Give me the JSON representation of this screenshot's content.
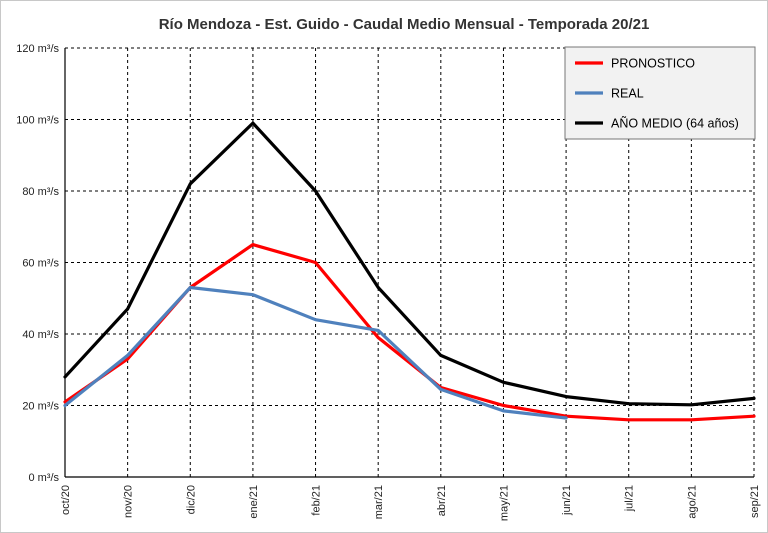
{
  "chart_data": {
    "type": "line",
    "title": "Río Mendoza - Est. Guido - Caudal Medio Mensual - Temporada 20/21",
    "xlabel": "",
    "ylabel": "",
    "categories": [
      "oct/20",
      "nov/20",
      "dic/20",
      "ene/21",
      "feb/21",
      "mar/21",
      "abr/21",
      "may/21",
      "jun/21",
      "jul/21",
      "ago/21",
      "sep/21"
    ],
    "y_tick_labels": [
      "0 m³/s",
      "20 m³/s",
      "40 m³/s",
      "60 m³/s",
      "80 m³/s",
      "100 m³/s",
      "120 m³/s"
    ],
    "y_ticks": [
      0,
      20,
      40,
      60,
      80,
      100,
      120
    ],
    "ylim": [
      0,
      120
    ],
    "grid": true,
    "legend_position": "top-right",
    "series": [
      {
        "name": "PRONOSTICO",
        "color": "#ff0000",
        "values": [
          21,
          33,
          53,
          65,
          60,
          39,
          25,
          20,
          17,
          16,
          16,
          17
        ]
      },
      {
        "name": "REAL",
        "color": "#4f81bd",
        "values": [
          20,
          34,
          53,
          51,
          44,
          41,
          24.5,
          18.5,
          16.5,
          null,
          null,
          null
        ]
      },
      {
        "name": "AÑO MEDIO (64 años)",
        "color": "#000000",
        "values": [
          28,
          47,
          82,
          99,
          80,
          53,
          34,
          26.5,
          22.5,
          20.5,
          20.2,
          22
        ]
      }
    ]
  }
}
